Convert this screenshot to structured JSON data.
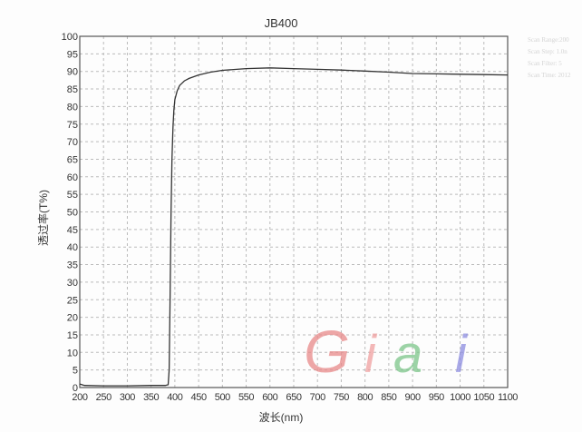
{
  "chart_data": {
    "type": "line",
    "title": "JB400",
    "xlabel": "波长(nm)",
    "ylabel": "透过率(T%)",
    "xlim": [
      200,
      1100
    ],
    "ylim": [
      0,
      100
    ],
    "xticks": [
      200,
      250,
      300,
      350,
      400,
      450,
      500,
      550,
      600,
      650,
      700,
      750,
      800,
      850,
      900,
      950,
      1000,
      1050,
      1100
    ],
    "yticks": [
      0,
      5,
      10,
      15,
      20,
      25,
      30,
      35,
      40,
      45,
      50,
      55,
      60,
      65,
      70,
      75,
      80,
      85,
      90,
      95,
      100
    ],
    "grid": true,
    "series": [
      {
        "color": "#333333",
        "x": [
          200,
          210,
          250,
          300,
          350,
          380,
          386,
          388,
          390,
          392,
          394,
          396,
          398,
          400,
          405,
          410,
          420,
          430,
          450,
          475,
          500,
          550,
          600,
          650,
          700,
          750,
          800,
          850,
          900,
          950,
          1000,
          1050,
          1100
        ],
        "y": [
          1,
          0.6,
          0.5,
          0.5,
          0.6,
          0.6,
          0.8,
          5,
          25,
          50,
          65,
          74,
          79,
          82,
          84.5,
          86,
          87.3,
          88,
          89,
          89.8,
          90.3,
          90.8,
          91,
          90.8,
          90.6,
          90.4,
          90.1,
          89.8,
          89.4,
          89.3,
          89.2,
          89.1,
          89
        ]
      }
    ]
  },
  "scan_info": [
    "Scan Range:200",
    "Scan Step: 1.0n",
    "Scan Filter: 5",
    "Scan Time: 2012"
  ],
  "logo": {
    "text": "Giai",
    "colors": [
      "#e88a8a",
      "#f0a0a0",
      "#7cc58a",
      "#8c8ce0"
    ]
  }
}
